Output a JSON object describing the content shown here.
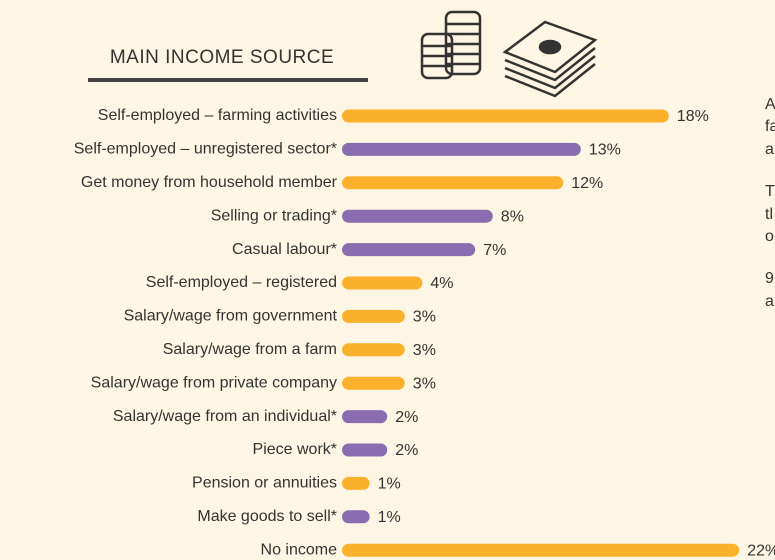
{
  "chart_data": {
    "type": "bar",
    "orientation": "horizontal",
    "title": "MAIN INCOME SOURCE",
    "categories": [
      "Self-employed – farming activities",
      "Self-employed – unregistered sector*",
      "Get money from household member",
      "Selling or trading*",
      "Casual labour*",
      "Self-employed – registered",
      "Salary/wage from government",
      "Salary/wage from a farm",
      "Salary/wage from private company",
      "Salary/wage from an individual*",
      "Piece work*",
      "Pension or annuities",
      "Make goods to sell*",
      "No income"
    ],
    "values": [
      18,
      13,
      12,
      8,
      7,
      4,
      3,
      3,
      3,
      2,
      2,
      1,
      1,
      22
    ],
    "value_labels": [
      "18%",
      "13%",
      "12%",
      "8%",
      "7%",
      "4%",
      "3%",
      "3%",
      "3%",
      "2%",
      "2%",
      "1%",
      "1%",
      "22%"
    ],
    "colors": [
      "#fbb12c",
      "#8a6db1",
      "#fbb12c",
      "#8a6db1",
      "#8a6db1",
      "#fbb12c",
      "#fbb12c",
      "#fbb12c",
      "#fbb12c",
      "#8a6db1",
      "#8a6db1",
      "#fbb12c",
      "#8a6db1",
      "#fbb12c"
    ],
    "annotations": [
      "A",
      "fa",
      "a",
      "T",
      "tl",
      "o",
      "9",
      "a"
    ]
  }
}
